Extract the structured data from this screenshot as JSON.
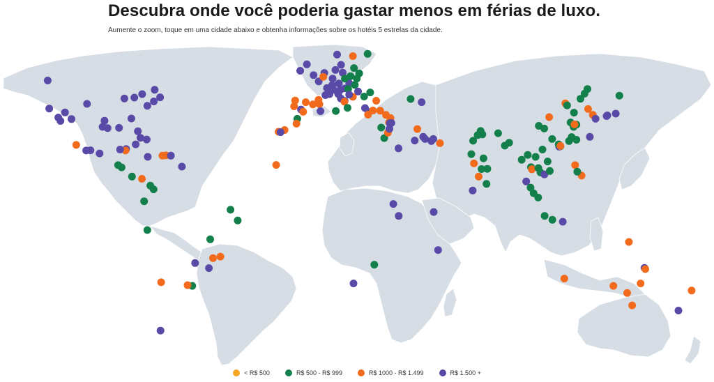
{
  "header": {
    "title": "Descubra onde você poderia gastar menos em férias de luxo.",
    "subtitle": "Aumente o zoom, toque em uma cidade abaixo e obtenha informações sobre os hotéis 5 estrelas da cidade."
  },
  "colors": {
    "land": "#d6dde4",
    "cat1": "#f5a623",
    "cat2": "#13804b",
    "cat3": "#f26b1d",
    "cat4": "#5a4aa8"
  },
  "legend": [
    {
      "label": "< R$ 500",
      "color": "#f5a623"
    },
    {
      "label": "R$ 500 - R$ 999",
      "color": "#13804b"
    },
    {
      "label": "R$ 1000 - R$ 1.499",
      "color": "#f26b1d"
    },
    {
      "label": "R$ 1.500 +",
      "color": "#5a4aa8"
    }
  ],
  "cities": [
    {
      "lon": -123.1,
      "lat": 49.3,
      "cat": 4
    },
    {
      "lon": -122.4,
      "lat": 37.8,
      "cat": 4
    },
    {
      "lon": -118.2,
      "lat": 34.1,
      "cat": 4
    },
    {
      "lon": -117.2,
      "lat": 32.7,
      "cat": 4
    },
    {
      "lon": -115.1,
      "lat": 36.2,
      "cat": 4
    },
    {
      "lon": -112.1,
      "lat": 33.5,
      "cat": 4
    },
    {
      "lon": -104.9,
      "lat": 39.7,
      "cat": 4
    },
    {
      "lon": -97.7,
      "lat": 30.3,
      "cat": 4
    },
    {
      "lon": -95.4,
      "lat": 29.8,
      "cat": 4
    },
    {
      "lon": -96.8,
      "lat": 32.8,
      "cat": 4
    },
    {
      "lon": -87.6,
      "lat": 41.9,
      "cat": 4
    },
    {
      "lon": -84.4,
      "lat": 33.7,
      "cat": 4
    },
    {
      "lon": -90.1,
      "lat": 29.9,
      "cat": 4
    },
    {
      "lon": -80.2,
      "lat": 25.8,
      "cat": 4
    },
    {
      "lon": -81.4,
      "lat": 28.5,
      "cat": 4
    },
    {
      "lon": -77.0,
      "lat": 38.9,
      "cat": 4
    },
    {
      "lon": -74.0,
      "lat": 40.7,
      "cat": 4
    },
    {
      "lon": -71.1,
      "lat": 42.4,
      "cat": 4
    },
    {
      "lon": -73.6,
      "lat": 45.5,
      "cat": 4
    },
    {
      "lon": -79.4,
      "lat": 43.7,
      "cat": 4
    },
    {
      "lon": -83.0,
      "lat": 42.3,
      "cat": 4
    },
    {
      "lon": -157.9,
      "lat": 21.3,
      "cat": 4
    },
    {
      "lon": -99.1,
      "lat": 19.4,
      "cat": 4
    },
    {
      "lon": -105.3,
      "lat": 20.6,
      "cat": 4
    },
    {
      "lon": -103.3,
      "lat": 20.7,
      "cat": 4
    },
    {
      "lon": -86.8,
      "lat": 21.2,
      "cat": 4
    },
    {
      "lon": -87.1,
      "lat": 20.6,
      "cat": 3
    },
    {
      "lon": -89.6,
      "lat": 21.0,
      "cat": 4
    },
    {
      "lon": -82.4,
      "lat": 23.1,
      "cat": 4
    },
    {
      "lon": -77.3,
      "lat": 25.1,
      "cat": 4
    },
    {
      "lon": -70.0,
      "lat": 18.5,
      "cat": 3
    },
    {
      "lon": -68.4,
      "lat": 18.6,
      "cat": 3
    },
    {
      "lon": -66.1,
      "lat": 18.5,
      "cat": 4
    },
    {
      "lon": -61.0,
      "lat": 14.0,
      "cat": 4
    },
    {
      "lon": -76.8,
      "lat": 18.0,
      "cat": 4
    },
    {
      "lon": -109.9,
      "lat": 22.9,
      "cat": 3
    },
    {
      "lon": -90.5,
      "lat": 14.6,
      "cat": 2
    },
    {
      "lon": -88.9,
      "lat": 13.7,
      "cat": 2
    },
    {
      "lon": -84.1,
      "lat": 9.9,
      "cat": 2
    },
    {
      "lon": -79.5,
      "lat": 9.0,
      "cat": 3
    },
    {
      "lon": -75.6,
      "lat": 6.2,
      "cat": 2
    },
    {
      "lon": -74.1,
      "lat": 4.7,
      "cat": 2
    },
    {
      "lon": -78.5,
      "lat": -0.2,
      "cat": 2
    },
    {
      "lon": -77.0,
      "lat": -12.0,
      "cat": 2
    },
    {
      "lon": -38.5,
      "lat": -3.7,
      "cat": 2
    },
    {
      "lon": -35.2,
      "lat": -8.1,
      "cat": 2
    },
    {
      "lon": -47.9,
      "lat": -15.8,
      "cat": 2
    },
    {
      "lon": -43.2,
      "lat": -22.9,
      "cat": 3
    },
    {
      "lon": -46.6,
      "lat": -23.5,
      "cat": 3
    },
    {
      "lon": -48.5,
      "lat": -27.6,
      "cat": 4
    },
    {
      "lon": -56.2,
      "lat": -34.9,
      "cat": 2
    },
    {
      "lon": -58.4,
      "lat": -34.6,
      "cat": 3
    },
    {
      "lon": -70.6,
      "lat": -33.4,
      "cat": 3
    },
    {
      "lon": -54.9,
      "lat": -25.5,
      "cat": 4
    },
    {
      "lon": -70.9,
      "lat": -53.2,
      "cat": 4
    },
    {
      "lon": -9.1,
      "lat": 38.7,
      "cat": 3
    },
    {
      "lon": -8.6,
      "lat": 41.1,
      "cat": 3
    },
    {
      "lon": -5.9,
      "lat": 37.4,
      "cat": 4
    },
    {
      "lon": -3.7,
      "lat": 40.4,
      "cat": 3
    },
    {
      "lon": 2.2,
      "lat": 41.4,
      "cat": 3
    },
    {
      "lon": -4.9,
      "lat": 36.5,
      "cat": 3
    },
    {
      "lon": 2.6,
      "lat": 39.6,
      "cat": 3
    },
    {
      "lon": -0.4,
      "lat": 39.5,
      "cat": 3
    },
    {
      "lon": -16.3,
      "lat": 28.3,
      "cat": 3
    },
    {
      "lon": -13.5,
      "lat": 29.0,
      "cat": 3
    },
    {
      "lon": -15.4,
      "lat": 28.1,
      "cat": 4
    },
    {
      "lon": -7.6,
      "lat": 33.6,
      "cat": 2
    },
    {
      "lon": -8.0,
      "lat": 31.6,
      "cat": 3
    },
    {
      "lon": -17.4,
      "lat": 14.7,
      "cat": 3
    },
    {
      "lon": -0.1,
      "lat": 51.5,
      "cat": 4
    },
    {
      "lon": -6.3,
      "lat": 53.3,
      "cat": 4
    },
    {
      "lon": -3.2,
      "lat": 55.9,
      "cat": 4
    },
    {
      "lon": 2.3,
      "lat": 48.9,
      "cat": 4
    },
    {
      "lon": 4.9,
      "lat": 52.4,
      "cat": 4
    },
    {
      "lon": 4.4,
      "lat": 50.8,
      "cat": 3
    },
    {
      "lon": 7.3,
      "lat": 43.7,
      "cat": 4
    },
    {
      "lon": 5.4,
      "lat": 43.3,
      "cat": 4
    },
    {
      "lon": 6.1,
      "lat": 46.2,
      "cat": 4
    },
    {
      "lon": 8.5,
      "lat": 47.4,
      "cat": 4
    },
    {
      "lon": 8.7,
      "lat": 50.1,
      "cat": 4
    },
    {
      "lon": 11.6,
      "lat": 48.1,
      "cat": 4
    },
    {
      "lon": 13.4,
      "lat": 52.5,
      "cat": 4
    },
    {
      "lon": 10.0,
      "lat": 53.6,
      "cat": 4
    },
    {
      "lon": 12.6,
      "lat": 55.7,
      "cat": 4
    },
    {
      "lon": 18.1,
      "lat": 59.3,
      "cat": 3
    },
    {
      "lon": 10.8,
      "lat": 59.9,
      "cat": 4
    },
    {
      "lon": 24.9,
      "lat": 60.2,
      "cat": 2
    },
    {
      "lon": 9.2,
      "lat": 45.5,
      "cat": 4
    },
    {
      "lon": 12.3,
      "lat": 45.4,
      "cat": 4
    },
    {
      "lon": 11.3,
      "lat": 43.8,
      "cat": 4
    },
    {
      "lon": 12.5,
      "lat": 41.9,
      "cat": 4
    },
    {
      "lon": 14.3,
      "lat": 40.9,
      "cat": 4
    },
    {
      "lon": 14.2,
      "lat": 40.6,
      "cat": 3
    },
    {
      "lon": 15.6,
      "lat": 38.1,
      "cat": 2
    },
    {
      "lon": 16.4,
      "lat": 48.2,
      "cat": 4
    },
    {
      "lon": 14.4,
      "lat": 50.1,
      "cat": 2
    },
    {
      "lon": 19.0,
      "lat": 47.5,
      "cat": 2
    },
    {
      "lon": 21.0,
      "lat": 52.2,
      "cat": 2
    },
    {
      "lon": 19.9,
      "lat": 50.1,
      "cat": 2
    },
    {
      "lon": 18.6,
      "lat": 54.4,
      "cat": 2
    },
    {
      "lon": 17.0,
      "lat": 51.1,
      "cat": 2
    },
    {
      "lon": 14.5,
      "lat": 46.1,
      "cat": 4
    },
    {
      "lon": 15.9,
      "lat": 45.8,
      "cat": 2
    },
    {
      "lon": 18.1,
      "lat": 42.6,
      "cat": 3
    },
    {
      "lon": 16.4,
      "lat": 43.5,
      "cat": 4
    },
    {
      "lon": 20.5,
      "lat": 44.8,
      "cat": 4
    },
    {
      "lon": 23.3,
      "lat": 42.7,
      "cat": 2
    },
    {
      "lon": 26.1,
      "lat": 44.4,
      "cat": 2
    },
    {
      "lon": 23.7,
      "lat": 38.0,
      "cat": 4
    },
    {
      "lon": 25.4,
      "lat": 36.4,
      "cat": 4
    },
    {
      "lon": 25.1,
      "lat": 35.3,
      "cat": 3
    },
    {
      "lon": 28.9,
      "lat": 41.0,
      "cat": 3
    },
    {
      "lon": 30.7,
      "lat": 36.9,
      "cat": 3
    },
    {
      "lon": 27.4,
      "lat": 37.0,
      "cat": 3
    },
    {
      "lon": 33.4,
      "lat": 35.2,
      "cat": 3
    },
    {
      "lon": 35.5,
      "lat": 33.9,
      "cat": 3
    },
    {
      "lon": 34.8,
      "lat": 32.1,
      "cat": 3
    },
    {
      "lon": 35.2,
      "lat": 31.8,
      "cat": 4
    },
    {
      "lon": 35.9,
      "lat": 31.9,
      "cat": 4
    },
    {
      "lon": 31.2,
      "lat": 30.0,
      "cat": 2
    },
    {
      "lon": 32.6,
      "lat": 25.7,
      "cat": 2
    },
    {
      "lon": 34.3,
      "lat": 27.9,
      "cat": 3
    },
    {
      "lon": 35.0,
      "lat": 29.5,
      "cat": 4
    },
    {
      "lon": 44.8,
      "lat": 41.7,
      "cat": 2
    },
    {
      "lon": 49.9,
      "lat": 40.4,
      "cat": 4
    },
    {
      "lon": 10.2,
      "lat": 36.8,
      "cat": 2
    },
    {
      "lon": 3.1,
      "lat": 36.7,
      "cat": 4
    },
    {
      "lon": 51.5,
      "lat": 25.3,
      "cat": 4
    },
    {
      "lon": 50.6,
      "lat": 26.2,
      "cat": 4
    },
    {
      "lon": 55.3,
      "lat": 25.3,
      "cat": 4
    },
    {
      "lon": 54.4,
      "lat": 24.5,
      "cat": 4
    },
    {
      "lon": 58.4,
      "lat": 23.6,
      "cat": 3
    },
    {
      "lon": 46.7,
      "lat": 24.7,
      "cat": 4
    },
    {
      "lon": 39.2,
      "lat": 21.5,
      "cat": 4
    },
    {
      "lon": 47.9,
      "lat": 29.4,
      "cat": 3
    },
    {
      "lon": 36.8,
      "lat": -1.3,
      "cat": 4
    },
    {
      "lon": 39.3,
      "lat": -6.2,
      "cat": 4
    },
    {
      "lon": 28.0,
      "lat": -26.2,
      "cat": 2
    },
    {
      "lon": 18.4,
      "lat": -33.9,
      "cat": 4
    },
    {
      "lon": 57.5,
      "lat": -20.2,
      "cat": 4
    },
    {
      "lon": 55.5,
      "lat": -4.6,
      "cat": 4
    },
    {
      "lon": 73.5,
      "lat": 4.2,
      "cat": 4
    },
    {
      "lon": 72.9,
      "lat": 19.1,
      "cat": 2
    },
    {
      "lon": 77.2,
      "lat": 28.6,
      "cat": 2
    },
    {
      "lon": 78.0,
      "lat": 27.2,
      "cat": 2
    },
    {
      "lon": 75.8,
      "lat": 26.9,
      "cat": 2
    },
    {
      "lon": 73.7,
      "lat": 24.6,
      "cat": 2
    },
    {
      "lon": 74.1,
      "lat": 15.3,
      "cat": 3
    },
    {
      "lon": 77.6,
      "lat": 13.0,
      "cat": 2
    },
    {
      "lon": 80.3,
      "lat": 13.1,
      "cat": 2
    },
    {
      "lon": 78.5,
      "lat": 17.4,
      "cat": 2
    },
    {
      "lon": 76.3,
      "lat": 9.9,
      "cat": 3
    },
    {
      "lon": 79.9,
      "lat": 6.9,
      "cat": 2
    },
    {
      "lon": 88.4,
      "lat": 22.6,
      "cat": 2
    },
    {
      "lon": 85.3,
      "lat": 27.7,
      "cat": 2
    },
    {
      "lon": 90.4,
      "lat": 23.8,
      "cat": 2
    },
    {
      "lon": 96.2,
      "lat": 16.8,
      "cat": 2
    },
    {
      "lon": 100.5,
      "lat": 13.8,
      "cat": 2
    },
    {
      "lon": 98.3,
      "lat": 7.9,
      "cat": 4
    },
    {
      "lon": 99.0,
      "lat": 18.8,
      "cat": 2
    },
    {
      "lon": 100.9,
      "lat": 12.9,
      "cat": 3
    },
    {
      "lon": 101.7,
      "lat": 3.1,
      "cat": 2
    },
    {
      "lon": 100.3,
      "lat": 5.4,
      "cat": 2
    },
    {
      "lon": 103.8,
      "lat": 1.3,
      "cat": 2
    },
    {
      "lon": 104.9,
      "lat": 11.6,
      "cat": 2
    },
    {
      "lon": 103.9,
      "lat": 13.4,
      "cat": 2
    },
    {
      "lon": 106.7,
      "lat": 10.8,
      "cat": 4
    },
    {
      "lon": 105.8,
      "lat": 21.0,
      "cat": 2
    },
    {
      "lon": 108.2,
      "lat": 16.1,
      "cat": 2
    },
    {
      "lon": 109.2,
      "lat": 12.2,
      "cat": 2
    },
    {
      "lon": 102.6,
      "lat": 18.0,
      "cat": 2
    },
    {
      "lon": 106.8,
      "lat": -6.2,
      "cat": 2
    },
    {
      "lon": 115.2,
      "lat": -8.6,
      "cat": 4
    },
    {
      "lon": 110.4,
      "lat": -7.8,
      "cat": 2
    },
    {
      "lon": 114.1,
      "lat": 22.3,
      "cat": 2
    },
    {
      "lon": 113.5,
      "lat": 22.2,
      "cat": 4
    },
    {
      "lon": 113.3,
      "lat": 23.1,
      "cat": 2
    },
    {
      "lon": 114.1,
      "lat": 22.5,
      "cat": 3
    },
    {
      "lon": 121.5,
      "lat": 25.0,
      "cat": 2
    },
    {
      "lon": 120.9,
      "lat": 14.6,
      "cat": 3
    },
    {
      "lon": 123.9,
      "lat": 10.3,
      "cat": 3
    },
    {
      "lon": 121.9,
      "lat": 11.9,
      "cat": 2
    },
    {
      "lon": 110.3,
      "lat": 25.3,
      "cat": 2
    },
    {
      "lon": 104.1,
      "lat": 30.7,
      "cat": 2
    },
    {
      "lon": 106.6,
      "lat": 29.6,
      "cat": 2
    },
    {
      "lon": 108.9,
      "lat": 34.3,
      "cat": 3
    },
    {
      "lon": 116.4,
      "lat": 39.9,
      "cat": 3
    },
    {
      "lon": 117.2,
      "lat": 39.1,
      "cat": 2
    },
    {
      "lon": 121.5,
      "lat": 31.2,
      "cat": 2
    },
    {
      "lon": 120.2,
      "lat": 30.3,
      "cat": 2
    },
    {
      "lon": 118.8,
      "lat": 32.1,
      "cat": 2
    },
    {
      "lon": 120.6,
      "lat": 31.3,
      "cat": 3
    },
    {
      "lon": 118.1,
      "lat": 24.5,
      "cat": 2
    },
    {
      "lon": 119.3,
      "lat": 26.1,
      "cat": 2
    },
    {
      "lon": 120.4,
      "lat": 36.1,
      "cat": 2
    },
    {
      "lon": 125.3,
      "lat": 43.9,
      "cat": 2
    },
    {
      "lon": 123.4,
      "lat": 41.8,
      "cat": 2
    },
    {
      "lon": 126.6,
      "lat": 45.8,
      "cat": 2
    },
    {
      "lon": 126.9,
      "lat": 37.6,
      "cat": 3
    },
    {
      "lon": 129.1,
      "lat": 35.2,
      "cat": 3
    },
    {
      "lon": 139.7,
      "lat": 35.7,
      "cat": 4
    },
    {
      "lon": 135.5,
      "lat": 34.7,
      "cat": 4
    },
    {
      "lon": 135.8,
      "lat": 35.0,
      "cat": 4
    },
    {
      "lon": 141.4,
      "lat": 43.1,
      "cat": 2
    },
    {
      "lon": 127.7,
      "lat": 26.2,
      "cat": 4
    },
    {
      "lon": 130.4,
      "lat": 33.6,
      "cat": 4
    },
    {
      "lon": 151.2,
      "lat": -33.9,
      "cat": 3
    },
    {
      "lon": 153.0,
      "lat": -27.5,
      "cat": 4
    },
    {
      "lon": 153.4,
      "lat": -28.0,
      "cat": 3
    },
    {
      "lon": 145.0,
      "lat": -37.8,
      "cat": 3
    },
    {
      "lon": 138.6,
      "lat": -34.9,
      "cat": 3
    },
    {
      "lon": 115.9,
      "lat": -31.9,
      "cat": 3
    },
    {
      "lon": 147.3,
      "lat": -42.9,
      "cat": 3
    },
    {
      "lon": 145.8,
      "lat": -16.9,
      "cat": 3
    },
    {
      "lon": 174.8,
      "lat": -36.8,
      "cat": 3
    },
    {
      "lon": 168.7,
      "lat": -45.0,
      "cat": 4
    }
  ]
}
